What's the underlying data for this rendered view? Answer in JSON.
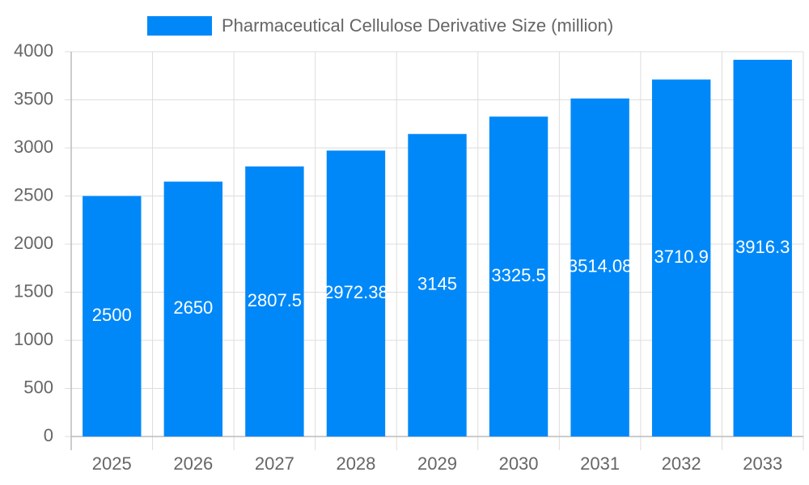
{
  "chart_data": {
    "type": "bar",
    "legend_label": "Pharmaceutical Cellulose Derivative Size (million)",
    "categories": [
      "2025",
      "2026",
      "2027",
      "2028",
      "2029",
      "2030",
      "2031",
      "2032",
      "2033"
    ],
    "values": [
      2500,
      2650,
      2807.5,
      2972.38,
      3145,
      3325.5,
      3514.08,
      3710.9,
      3916.3
    ],
    "color": "#0088f9",
    "ylim": [
      0,
      4000
    ],
    "yticks": [
      0,
      500,
      1000,
      1500,
      2000,
      2500,
      3000,
      3500,
      4000
    ],
    "grid": true
  }
}
